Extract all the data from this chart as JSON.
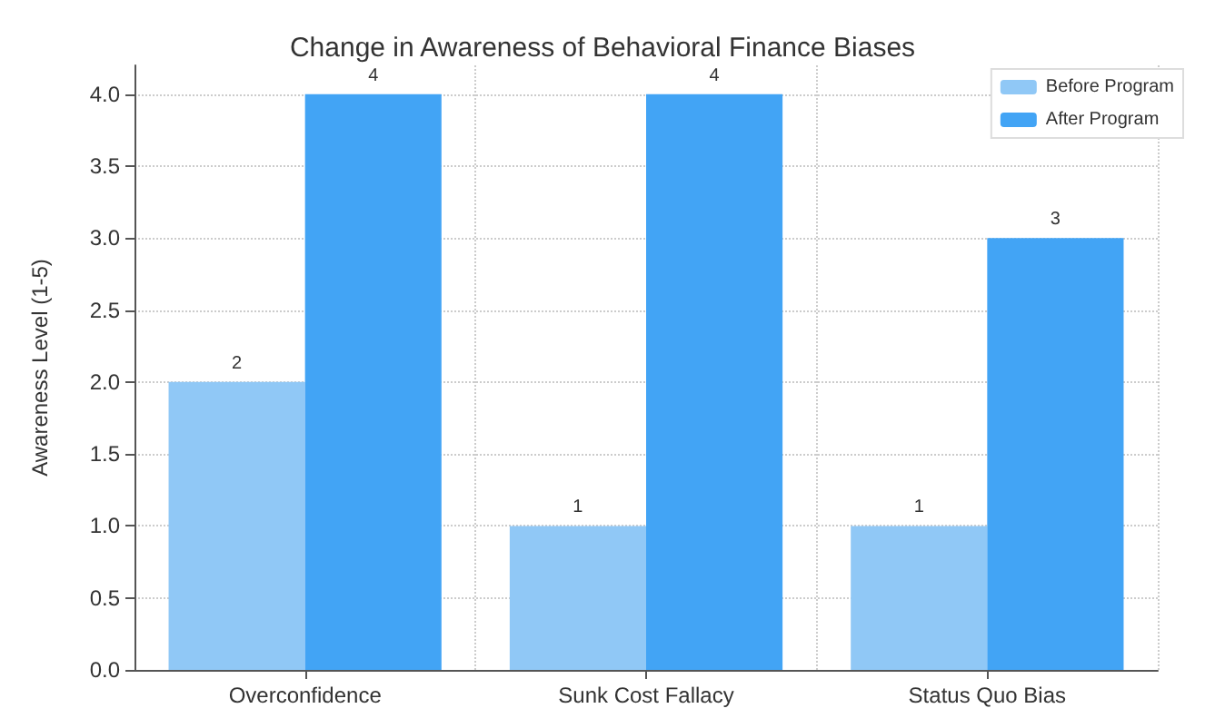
{
  "chart_data": {
    "type": "bar",
    "title": "Change in Awareness of Behavioral Finance Biases",
    "ylabel": "Awareness Level (1-5)",
    "categories": [
      "Overconfidence",
      "Sunk Cost Fallacy",
      "Status Quo Bias"
    ],
    "series": [
      {
        "name": "Before Program",
        "color": "#90c8f6",
        "values": [
          2,
          1,
          1
        ]
      },
      {
        "name": "After Program",
        "color": "#42a4f5",
        "values": [
          4,
          4,
          3
        ]
      }
    ],
    "ylim": [
      0,
      4.2
    ],
    "yticks": [
      {
        "value": 0,
        "label": "0.0"
      },
      {
        "value": 0.5,
        "label": "0.5"
      },
      {
        "value": 1,
        "label": "1.0"
      },
      {
        "value": 1.5,
        "label": "1.5"
      },
      {
        "value": 2,
        "label": "2.0"
      },
      {
        "value": 2.5,
        "label": "2.5"
      },
      {
        "value": 3,
        "label": "3.0"
      },
      {
        "value": 3.5,
        "label": "3.5"
      },
      {
        "value": 4,
        "label": "4.0"
      }
    ],
    "grid": true,
    "legend": "top right",
    "data_labels": true
  }
}
